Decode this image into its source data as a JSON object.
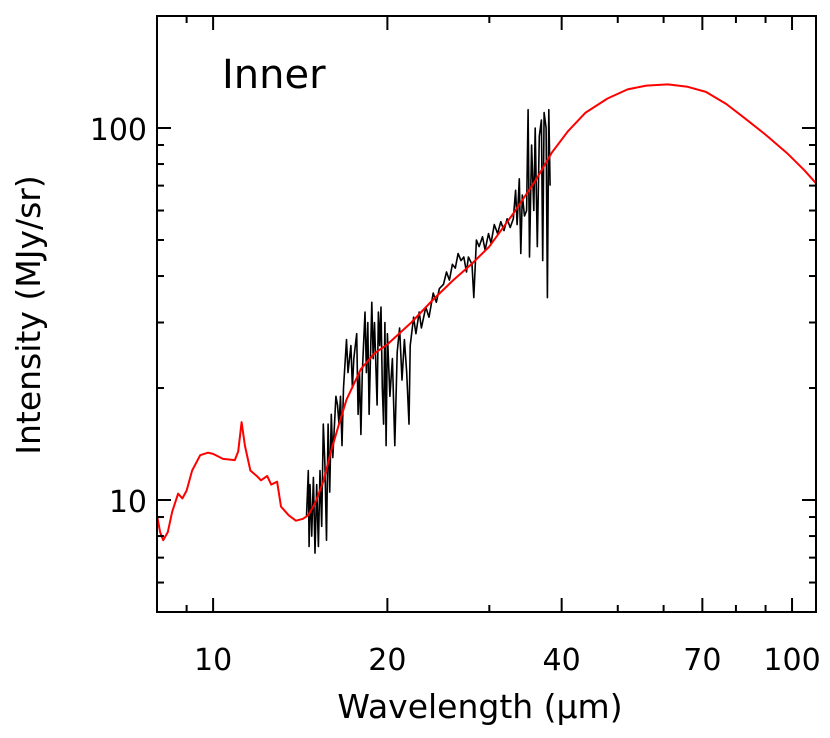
{
  "chart_data": {
    "type": "line",
    "title": "Inner",
    "xlabel": "Wavelength (μm)",
    "ylabel": "Intensity (MJy/sr)",
    "xscale": "log",
    "yscale": "log",
    "xlim": [
      8,
      110
    ],
    "ylim": [
      5,
      200
    ],
    "grid": false,
    "x_ticks": [
      10,
      20,
      40,
      70,
      100
    ],
    "x_tick_labels": [
      "10",
      "20",
      "40",
      "70",
      "100"
    ],
    "x_minor_ticks": [
      9,
      30,
      50,
      60,
      80,
      90
    ],
    "y_ticks": [
      10,
      100
    ],
    "y_tick_labels": [
      "10",
      "100"
    ],
    "y_minor_ticks": [
      6,
      7,
      8,
      9,
      20,
      30,
      40,
      50,
      60,
      70,
      80,
      90
    ],
    "colors": {
      "model": "#ff0000",
      "spectrum": "#000000"
    },
    "series": [
      {
        "color": "#ff0000",
        "x": [
          8.0,
          8.1,
          8.2,
          8.35,
          8.5,
          8.7,
          8.85,
          9.0,
          9.2,
          9.5,
          9.8,
          10.0,
          10.4,
          10.9,
          11.05,
          11.2,
          11.35,
          11.6,
          11.9,
          12.1,
          12.4,
          12.6,
          12.9,
          13.1,
          13.5,
          13.9,
          14.3,
          14.6,
          15.0,
          15.5,
          16.0,
          16.5,
          17.0,
          18.0,
          19.0,
          20.0,
          22.0,
          24.0,
          26.0,
          28.0,
          30.0,
          33.0,
          36.0,
          38.5,
          41.0,
          44.0,
          48.0,
          52.0,
          56.0,
          61.0,
          66.0,
          71.0,
          77.0,
          83.0,
          90.0,
          98.0,
          105.0,
          110.0
        ],
        "y": [
          9.1,
          8.2,
          7.8,
          8.2,
          9.3,
          10.4,
          10.1,
          10.6,
          12.0,
          13.2,
          13.4,
          13.3,
          12.9,
          12.8,
          13.5,
          16.2,
          14.0,
          12.0,
          11.6,
          11.3,
          11.6,
          11.0,
          11.2,
          9.6,
          9.1,
          8.8,
          8.9,
          9.1,
          9.8,
          11.2,
          13.6,
          16.0,
          18.6,
          22.5,
          24.8,
          26.2,
          30.0,
          34.6,
          39.0,
          43.2,
          48.0,
          58.9,
          72.0,
          86.0,
          98.0,
          110.0,
          120.0,
          127.0,
          130.0,
          131.0,
          129.0,
          125.0,
          116.0,
          106.0,
          96.0,
          85.6,
          77.0,
          71.0
        ]
      },
      {
        "color": "#000000",
        "x": [
          14.5,
          14.6,
          14.65,
          14.7,
          14.8,
          14.9,
          15.0,
          15.1,
          15.2,
          15.3,
          15.4,
          15.5,
          15.6,
          15.7,
          15.8,
          15.9,
          16.0,
          16.1,
          16.3,
          16.4,
          16.5,
          16.6,
          16.7,
          16.8,
          17.0,
          17.1,
          17.3,
          17.4,
          17.5,
          17.7,
          17.8,
          17.9,
          18.0,
          18.1,
          18.3,
          18.4,
          18.5,
          18.6,
          18.8,
          18.9,
          19.0,
          19.2,
          19.3,
          19.4,
          19.5,
          19.6,
          19.7,
          19.8,
          19.9,
          20.0,
          20.2,
          20.4,
          20.6,
          20.8,
          21.0,
          21.2,
          21.4,
          21.6,
          21.8,
          21.9,
          22.2,
          22.4,
          22.7,
          22.9,
          23.3,
          23.6,
          24.0,
          24.3,
          24.6,
          25.0,
          25.3,
          25.6,
          25.9,
          26.2,
          26.5,
          26.8,
          27.1,
          27.4,
          27.6,
          28.0,
          28.2,
          28.5,
          28.8,
          29.2,
          29.5,
          29.9,
          30.2,
          30.6,
          31.0,
          31.4,
          31.8,
          32.2,
          32.6,
          33.0,
          33.3,
          33.5,
          33.8,
          34.0,
          34.2,
          34.5,
          34.8,
          35.0,
          35.2,
          35.5,
          35.8,
          36.0,
          36.3,
          36.6,
          36.9,
          37.1,
          37.3,
          37.6,
          37.8,
          38.0,
          38.2
        ],
        "y": [
          9.0,
          12.0,
          7.5,
          11.0,
          8.0,
          11.5,
          7.2,
          11.0,
          7.5,
          12.0,
          8.5,
          16.0,
          12.5,
          7.8,
          16.0,
          10.5,
          17.0,
          13.0,
          19.0,
          18.0,
          16.0,
          19.0,
          14.0,
          20.0,
          27.0,
          22.0,
          26.0,
          20.0,
          24.0,
          28.0,
          17.0,
          22.0,
          15.0,
          22.0,
          32.0,
          22.0,
          30.0,
          17.0,
          34.0,
          24.0,
          30.0,
          18.0,
          32.0,
          26.0,
          33.0,
          20.0,
          16.0,
          30.0,
          14.0,
          28.0,
          19.0,
          24.0,
          14.0,
          25.0,
          29.0,
          21.0,
          27.0,
          22.0,
          16.0,
          26.0,
          31.0,
          28.0,
          32.0,
          29.0,
          33.0,
          31.0,
          36.0,
          34.0,
          37.0,
          38.0,
          41.0,
          39.0,
          43.0,
          42.0,
          46.0,
          44.0,
          45.0,
          41.0,
          45.0,
          43.0,
          35.0,
          50.0,
          48.0,
          51.0,
          47.0,
          52.0,
          49.0,
          55.0,
          52.0,
          56.0,
          53.0,
          57.0,
          54.0,
          57.0,
          68.0,
          55.0,
          73.0,
          46.0,
          66.0,
          58.0,
          60.0,
          112.0,
          45.0,
          90.0,
          60.0,
          100.0,
          48.0,
          95.0,
          105.0,
          44.0,
          110.0,
          100.0,
          35.0,
          112.0,
          70.0
        ]
      }
    ]
  }
}
